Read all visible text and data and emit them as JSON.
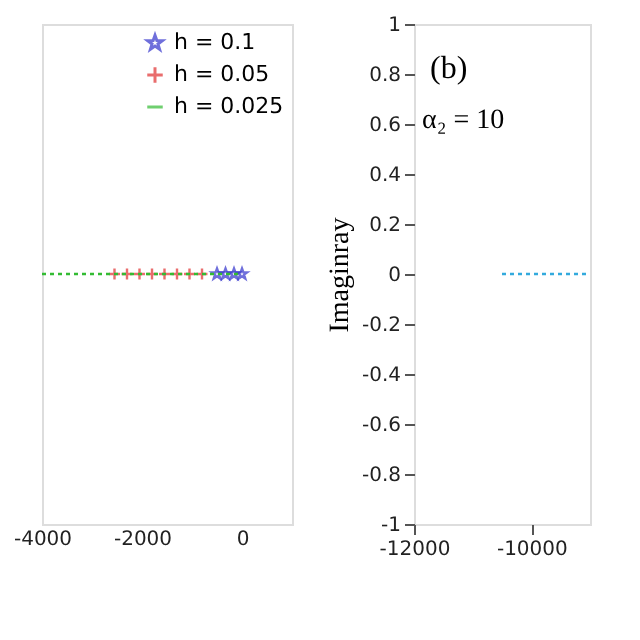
{
  "chart_data": [
    {
      "type": "scatter",
      "xlim": [
        -4000,
        1000
      ],
      "xticks": [
        -4000,
        -2000,
        0
      ],
      "ylim": [
        -1,
        1
      ],
      "yticks": [
        -1,
        -0.8,
        -0.6,
        -0.4,
        -0.2,
        0,
        0.2,
        0.4,
        0.6,
        0.8,
        1
      ],
      "tick_labels": "x",
      "grid": false,
      "legend": "top right",
      "series": [
        {
          "name": "h = 0.1",
          "color": "#3333cc",
          "marker": "star",
          "x": [
            -500,
            -330,
            -160,
            0
          ],
          "values": [
            0,
            0,
            0,
            0
          ]
        },
        {
          "name": "h = 0.05",
          "color": "#e03030",
          "marker": "cross",
          "x": [
            -2550,
            -2300,
            -2050,
            -1800,
            -1550,
            -1300,
            -1050,
            -800
          ],
          "values": [
            0,
            0,
            0,
            0,
            0,
            0,
            0,
            0
          ]
        },
        {
          "name": "h = 0.025",
          "color": "#33bb33",
          "type": "line",
          "line_style": "dotted",
          "marker": "none",
          "x": [
            -4000,
            0
          ],
          "values": [
            0,
            0
          ]
        }
      ]
    },
    {
      "type": "line",
      "ylabel": "Imaginray",
      "xlim": [
        -12000,
        -9000
      ],
      "xticks": [
        -12000,
        -10000
      ],
      "ylim": [
        -1,
        1
      ],
      "yticks": [
        -1,
        -0.8,
        -0.6,
        -0.4,
        -0.2,
        0,
        0.2,
        0.4,
        0.6,
        0.8,
        1
      ],
      "grid": false,
      "annotations": [
        "(b)",
        "α₂ = 10"
      ],
      "series": [
        {
          "color": "#33aadd",
          "line_style": "dotted",
          "marker": "none",
          "x": [
            -10500,
            -9000
          ],
          "values": [
            0,
            0
          ]
        }
      ]
    }
  ]
}
